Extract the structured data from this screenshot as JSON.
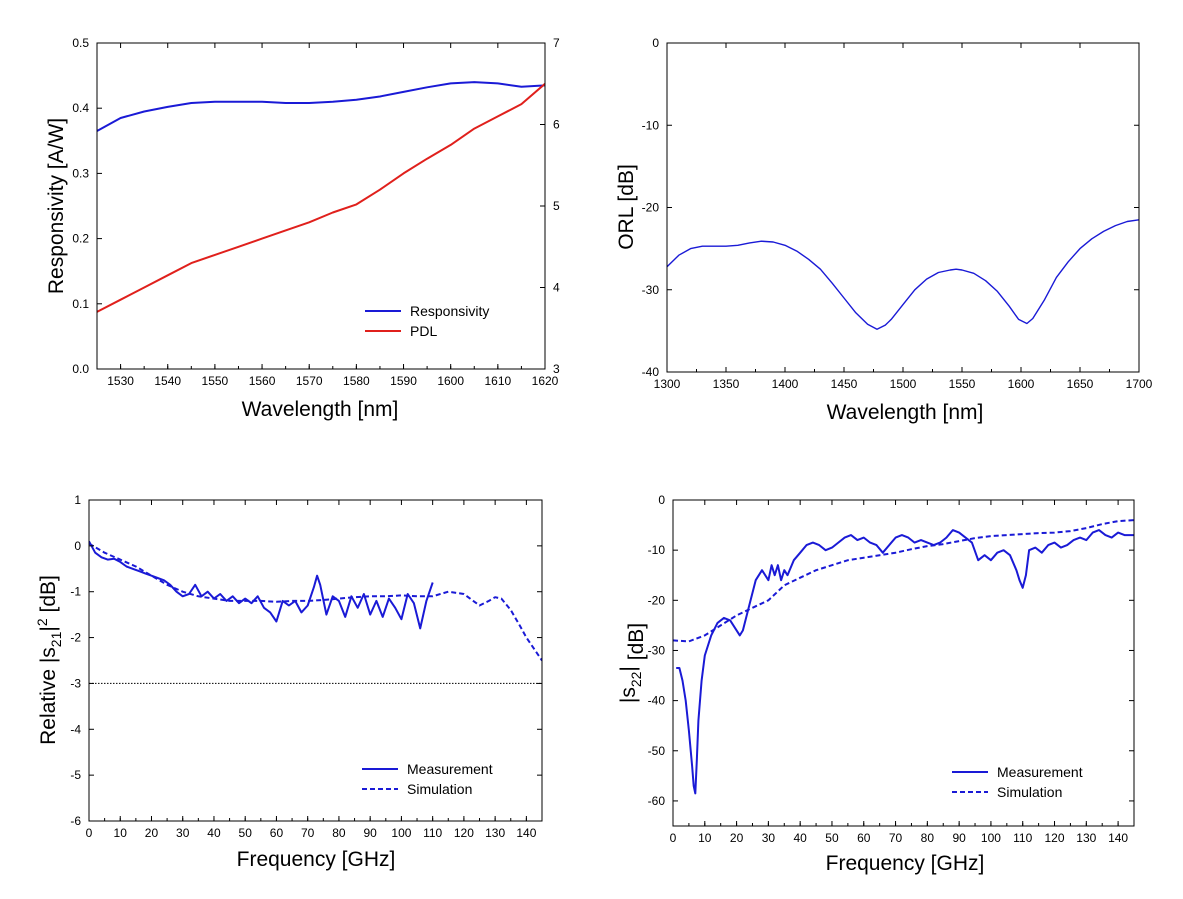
{
  "colors": {
    "blue": "#1a1ad6",
    "red": "#e0201c",
    "axis": "#000000"
  },
  "chart_data": [
    {
      "type": "line",
      "id": "responsivity",
      "xlabel": "Wavelength  [nm]",
      "ylabel": "Responsivity  [A/W]",
      "xlim": [
        1525,
        1620
      ],
      "ylim": [
        0.0,
        0.5
      ],
      "y2lim": [
        3,
        7
      ],
      "xticks": [
        1530,
        1540,
        1550,
        1560,
        1570,
        1580,
        1590,
        1600,
        1610,
        1620
      ],
      "yticks": [
        "0.0",
        "0.1",
        "0.2",
        "0.3",
        "0.4",
        "0.5"
      ],
      "y2ticks": [
        "3",
        "4",
        "5",
        "6",
        "7"
      ],
      "legend_position": "bottom-right",
      "series": [
        {
          "name": "Responsivity",
          "axis": "left",
          "color": "#1a1ad6",
          "style": "solid",
          "x": [
            1525,
            1530,
            1535,
            1540,
            1545,
            1550,
            1555,
            1560,
            1565,
            1570,
            1575,
            1580,
            1585,
            1590,
            1595,
            1600,
            1605,
            1610,
            1615,
            1620
          ],
          "y": [
            0.365,
            0.385,
            0.395,
            0.402,
            0.408,
            0.41,
            0.41,
            0.41,
            0.408,
            0.408,
            0.41,
            0.413,
            0.418,
            0.425,
            0.432,
            0.438,
            0.44,
            0.438,
            0.433,
            0.435
          ]
        },
        {
          "name": "PDL",
          "axis": "right",
          "color": "#e0201c",
          "style": "solid",
          "x": [
            1525,
            1530,
            1535,
            1540,
            1545,
            1550,
            1555,
            1560,
            1565,
            1570,
            1575,
            1580,
            1585,
            1590,
            1595,
            1600,
            1605,
            1610,
            1615,
            1620
          ],
          "y": [
            3.7,
            3.85,
            4.0,
            4.15,
            4.3,
            4.4,
            4.5,
            4.6,
            4.7,
            4.8,
            4.92,
            5.02,
            5.2,
            5.4,
            5.58,
            5.75,
            5.95,
            6.1,
            6.25,
            6.5
          ]
        }
      ]
    },
    {
      "type": "line",
      "id": "orl",
      "xlabel": "Wavelength  [nm]",
      "ylabel": "ORL  [dB]",
      "xlim": [
        1300,
        1700
      ],
      "ylim": [
        -40,
        0
      ],
      "xticks": [
        "1300",
        "1350",
        "1400",
        "1450",
        "1500",
        "1550",
        "1600",
        "1650",
        "1700"
      ],
      "yticks": [
        "-40",
        "-30",
        "-20",
        "-10",
        "0"
      ],
      "series": [
        {
          "name": "ORL",
          "color": "#1a1ad6",
          "style": "solid",
          "x": [
            1300,
            1310,
            1320,
            1330,
            1340,
            1350,
            1360,
            1370,
            1380,
            1390,
            1400,
            1410,
            1420,
            1430,
            1440,
            1450,
            1460,
            1470,
            1478,
            1485,
            1490,
            1500,
            1510,
            1520,
            1530,
            1540,
            1545,
            1550,
            1560,
            1570,
            1580,
            1590,
            1598,
            1605,
            1610,
            1620,
            1630,
            1640,
            1650,
            1660,
            1670,
            1680,
            1690,
            1700
          ],
          "y": [
            -27.2,
            -25.8,
            -25.0,
            -24.7,
            -24.7,
            -24.7,
            -24.6,
            -24.3,
            -24.1,
            -24.2,
            -24.6,
            -25.3,
            -26.3,
            -27.5,
            -29.2,
            -31.0,
            -32.8,
            -34.2,
            -34.8,
            -34.3,
            -33.6,
            -31.8,
            -30.0,
            -28.7,
            -27.9,
            -27.6,
            -27.5,
            -27.6,
            -28.0,
            -28.9,
            -30.2,
            -32.0,
            -33.6,
            -34.1,
            -33.5,
            -31.2,
            -28.5,
            -26.6,
            -25.0,
            -23.8,
            -22.9,
            -22.2,
            -21.7,
            -21.5
          ]
        }
      ]
    },
    {
      "type": "line",
      "id": "s21",
      "xlabel": "Frequency  [GHz]",
      "ylabel": "Relative |s21|2  [dB]",
      "ylabel_parts": {
        "pre": "Relative |s",
        "sub": "21",
        "mid": "|",
        "sup": "2",
        "post": "  [dB]"
      },
      "xlim": [
        0,
        145
      ],
      "ylim": [
        -6,
        1
      ],
      "xticks": [
        "0",
        "10",
        "20",
        "30",
        "40",
        "50",
        "60",
        "70",
        "80",
        "90",
        "100",
        "110",
        "120",
        "130",
        "140"
      ],
      "yticks": [
        "-6",
        "-5",
        "-4",
        "-3",
        "-2",
        "-1",
        "0",
        "1"
      ],
      "reference_line_y": -3,
      "legend_position": "bottom-right",
      "series": [
        {
          "name": "Measurement",
          "color": "#1a1ad6",
          "style": "solid",
          "x": [
            0,
            2,
            4,
            6,
            8,
            10,
            12,
            14,
            16,
            18,
            20,
            22,
            24,
            26,
            28,
            30,
            32,
            34,
            36,
            38,
            40,
            42,
            44,
            46,
            48,
            50,
            52,
            54,
            56,
            58,
            60,
            62,
            64,
            66,
            68,
            70,
            72,
            73,
            74,
            76,
            78,
            80,
            82,
            84,
            86,
            88,
            90,
            92,
            94,
            96,
            98,
            100,
            102,
            104,
            106,
            108,
            110
          ],
          "y": [
            0.1,
            -0.15,
            -0.25,
            -0.3,
            -0.28,
            -0.35,
            -0.45,
            -0.5,
            -0.55,
            -0.6,
            -0.65,
            -0.7,
            -0.75,
            -0.85,
            -1.0,
            -1.1,
            -1.05,
            -0.85,
            -1.1,
            -1.0,
            -1.15,
            -1.05,
            -1.2,
            -1.1,
            -1.25,
            -1.15,
            -1.25,
            -1.1,
            -1.35,
            -1.45,
            -1.65,
            -1.2,
            -1.3,
            -1.2,
            -1.45,
            -1.3,
            -0.9,
            -0.65,
            -0.85,
            -1.5,
            -1.1,
            -1.2,
            -1.55,
            -1.1,
            -1.35,
            -1.05,
            -1.5,
            -1.2,
            -1.55,
            -1.15,
            -1.35,
            -1.6,
            -1.05,
            -1.25,
            -1.8,
            -1.2,
            -0.8
          ]
        },
        {
          "name": "Simulation",
          "color": "#1a1ad6",
          "style": "dashed",
          "x": [
            0,
            5,
            10,
            15,
            20,
            25,
            30,
            35,
            40,
            45,
            50,
            55,
            60,
            65,
            70,
            75,
            80,
            85,
            90,
            95,
            100,
            105,
            110,
            115,
            120,
            122,
            125,
            128,
            130,
            132,
            135,
            138,
            140,
            142,
            145
          ],
          "y": [
            0.05,
            -0.15,
            -0.3,
            -0.45,
            -0.65,
            -0.85,
            -1.0,
            -1.1,
            -1.15,
            -1.2,
            -1.2,
            -1.2,
            -1.22,
            -1.2,
            -1.2,
            -1.18,
            -1.15,
            -1.12,
            -1.1,
            -1.1,
            -1.08,
            -1.1,
            -1.1,
            -1.0,
            -1.05,
            -1.15,
            -1.3,
            -1.2,
            -1.12,
            -1.15,
            -1.4,
            -1.75,
            -2.0,
            -2.2,
            -2.5
          ]
        }
      ]
    },
    {
      "type": "line",
      "id": "s22",
      "xlabel": "Frequency  [GHz]",
      "ylabel": "|s22|  [dB]",
      "ylabel_parts": {
        "pre": "|s",
        "sub": "22",
        "mid": "|",
        "sup": "",
        "post": "  [dB]"
      },
      "xlim": [
        0,
        145
      ],
      "ylim": [
        -65,
        0
      ],
      "xticks": [
        "0",
        "10",
        "20",
        "30",
        "40",
        "50",
        "60",
        "70",
        "80",
        "90",
        "100",
        "110",
        "120",
        "130",
        "140"
      ],
      "yticks": [
        "-60",
        "-50",
        "-40",
        "-30",
        "-20",
        "-10",
        "0"
      ],
      "legend_position": "bottom-right",
      "series": [
        {
          "name": "Measurement",
          "color": "#1a1ad6",
          "style": "solid",
          "x": [
            1,
            2,
            3,
            4,
            5,
            6,
            6.5,
            7,
            7.5,
            8,
            9,
            10,
            12,
            14,
            16,
            18,
            20,
            21,
            22,
            24,
            26,
            28,
            30,
            31,
            32,
            33,
            34,
            35,
            36,
            38,
            40,
            42,
            44,
            46,
            48,
            50,
            52,
            54,
            56,
            58,
            60,
            62,
            64,
            66,
            68,
            70,
            72,
            74,
            76,
            78,
            80,
            82,
            84,
            86,
            88,
            90,
            92,
            94,
            96,
            98,
            100,
            102,
            104,
            106,
            108,
            109,
            110,
            111,
            112,
            114,
            116,
            118,
            120,
            122,
            124,
            126,
            128,
            130,
            132,
            134,
            136,
            138,
            140,
            142,
            145
          ],
          "y": [
            -33.5,
            -33.5,
            -36,
            -40,
            -46,
            -53,
            -57,
            -58.5,
            -52,
            -44,
            -36,
            -31,
            -27,
            -24.5,
            -23.5,
            -24,
            -26,
            -27,
            -26,
            -21,
            -16,
            -14,
            -16,
            -13,
            -15,
            -13,
            -16,
            -14,
            -15,
            -12,
            -10.5,
            -9,
            -8.5,
            -9,
            -10,
            -9.5,
            -8.5,
            -7.5,
            -7,
            -8,
            -7.5,
            -8.5,
            -9,
            -10.5,
            -9,
            -7.5,
            -7,
            -7.5,
            -8.5,
            -8,
            -8.5,
            -9,
            -8.5,
            -7.5,
            -6,
            -6.5,
            -7.5,
            -8.5,
            -12,
            -11,
            -12,
            -10.5,
            -10,
            -11,
            -14,
            -16,
            -17.5,
            -15,
            -10,
            -9.5,
            -10.5,
            -9,
            -8.5,
            -9.5,
            -9,
            -8,
            -7.5,
            -8,
            -6.5,
            -6,
            -7,
            -7.5,
            -6.5,
            -7,
            -7
          ]
        },
        {
          "name": "Simulation",
          "color": "#1a1ad6",
          "style": "dashed",
          "x": [
            0,
            5,
            10,
            15,
            20,
            25,
            30,
            35,
            40,
            45,
            50,
            55,
            60,
            65,
            70,
            75,
            80,
            85,
            90,
            95,
            100,
            105,
            110,
            115,
            120,
            125,
            130,
            135,
            140,
            145
          ],
          "y": [
            -28,
            -28.2,
            -27,
            -25,
            -23,
            -21.5,
            -20,
            -17,
            -15.5,
            -14,
            -13,
            -12,
            -11.5,
            -11,
            -10.5,
            -9.8,
            -9.2,
            -8.8,
            -8.2,
            -7.6,
            -7.2,
            -7.0,
            -6.8,
            -6.6,
            -6.5,
            -6.2,
            -5.6,
            -4.8,
            -4.2,
            -4.0
          ]
        }
      ]
    }
  ]
}
